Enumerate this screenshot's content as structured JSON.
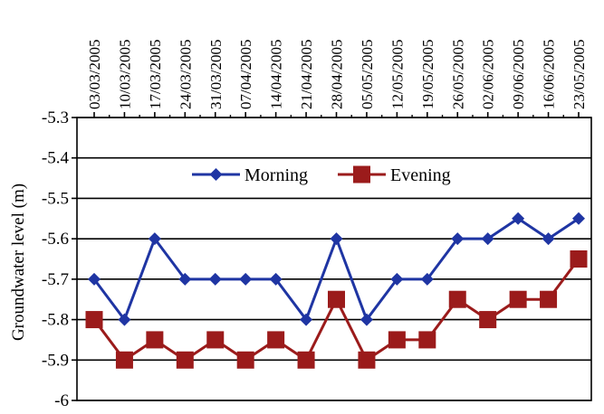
{
  "chart_data": {
    "type": "line",
    "categories": [
      "03/03/2005",
      "10/03/2005",
      "17/03/2005",
      "24/03/2005",
      "31/03/2005",
      "07/04/2005",
      "14/04/2005",
      "21/04/2005",
      "28/04/2005",
      "05/05/2005",
      "12/05/2005",
      "19/05/2005",
      "26/05/2005",
      "02/06/2005",
      "09/06/2005",
      "16/06/2005",
      "23/05/2005"
    ],
    "series": [
      {
        "name": "Morning",
        "color": "#1f35a3",
        "marker": "diamond",
        "values": [
          -5.7,
          -5.8,
          -5.6,
          -5.7,
          -5.7,
          -5.7,
          -5.7,
          -5.8,
          -5.6,
          -5.8,
          -5.7,
          -5.7,
          -5.6,
          -5.6,
          -5.55,
          -5.6,
          -5.55
        ]
      },
      {
        "name": "Evening",
        "color": "#9b1b1b",
        "marker": "square",
        "values": [
          -5.8,
          -5.9,
          -5.85,
          -5.9,
          -5.85,
          -5.9,
          -5.85,
          -5.9,
          -5.75,
          -5.9,
          -5.85,
          -5.85,
          -5.75,
          -5.8,
          -5.75,
          -5.75,
          -5.65
        ]
      }
    ],
    "ylabel": "Groundwater level (m)",
    "ylim": [
      -6,
      -5.3
    ],
    "yticks": [
      -5.3,
      -5.4,
      -5.5,
      -5.6,
      -5.7,
      -5.8,
      -5.9,
      -6
    ],
    "ytick_labels": [
      "-5.3",
      "-5.4",
      "-5.5",
      "-5.6",
      "-5.7",
      "-5.8",
      "-5.9",
      "-6"
    ],
    "grid": true,
    "x_axis_position": "top",
    "legend_position": "inside-top-center"
  }
}
